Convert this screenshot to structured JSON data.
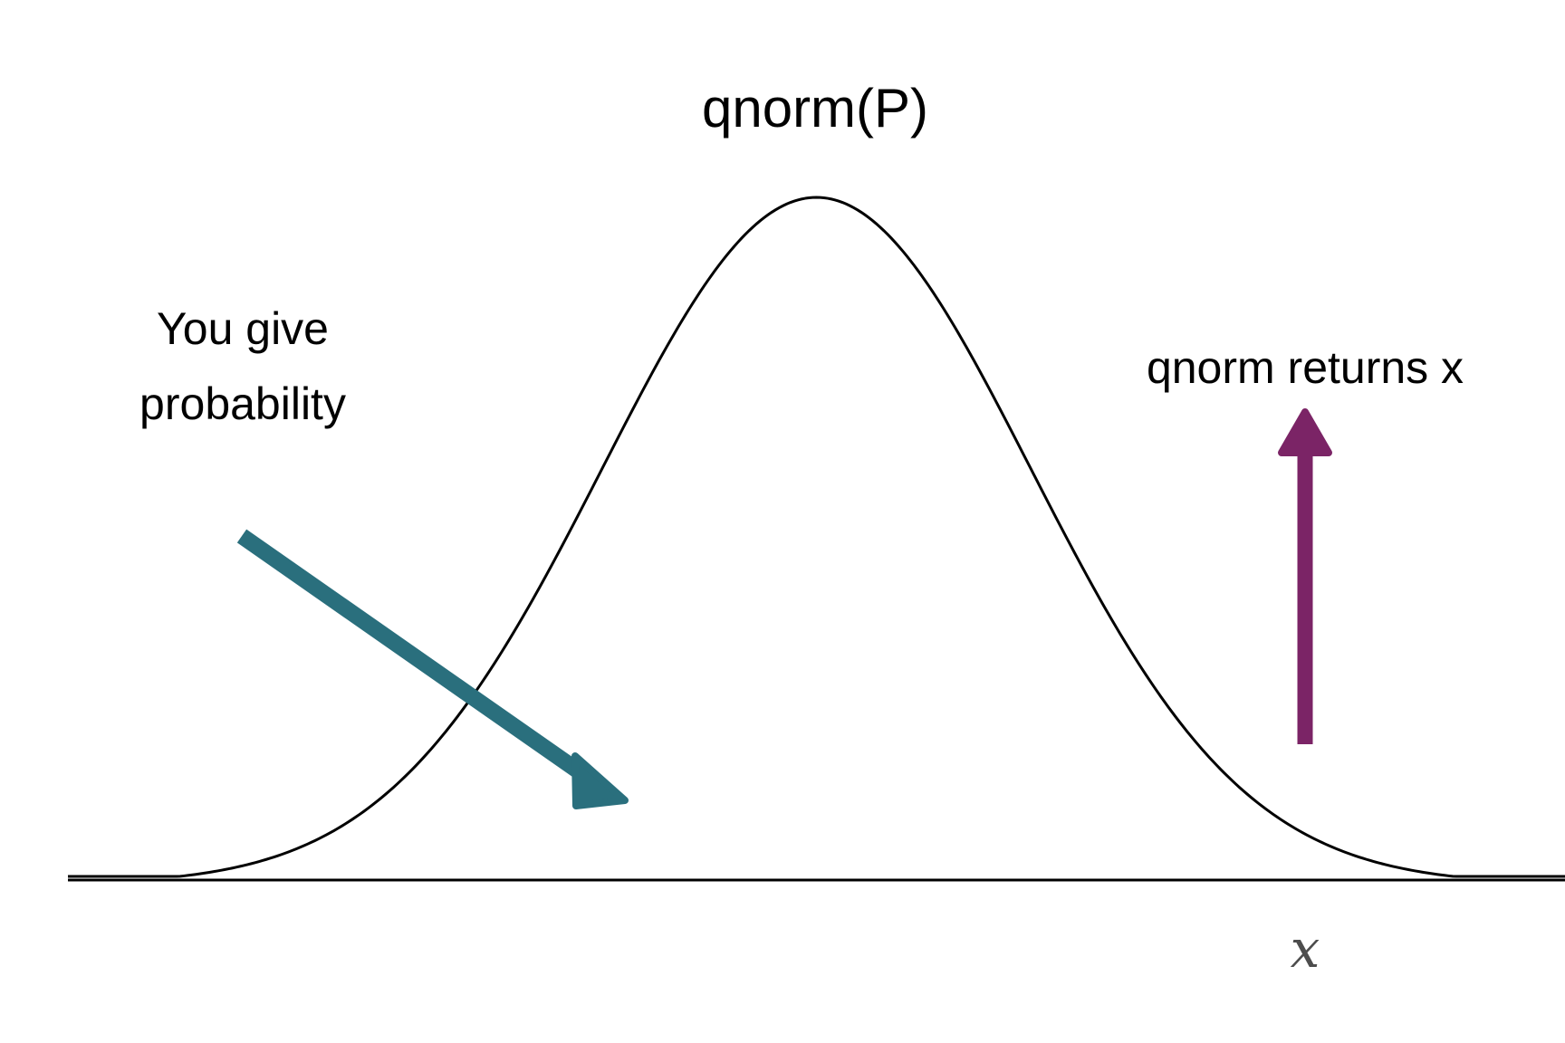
{
  "title": "qnorm(P)",
  "input_annotation": {
    "lines": [
      "You give",
      "probability"
    ],
    "arrow_color": "#2a6f7d",
    "icon": "arrow-down-right-icon"
  },
  "output_annotation": {
    "text": "qnorm returns x",
    "arrow_color": "#7b2466",
    "icon": "arrow-up-icon"
  },
  "axis": {
    "variable": "x"
  },
  "curve": {
    "type": "normal density",
    "mean": 0,
    "sd": 1,
    "x_range": [
      -3.5,
      3.5
    ],
    "color": "#000000"
  }
}
